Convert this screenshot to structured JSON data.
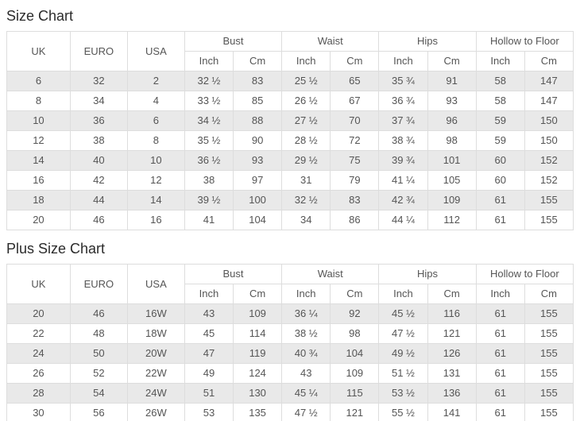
{
  "colors": {
    "stripe_row_bg": "#e9e9e9",
    "table_border": "#dddddd",
    "cell_text": "#555555",
    "title_text": "#2b2b2b",
    "page_bg": "#ffffff"
  },
  "headers": {
    "uk": "UK",
    "euro": "EURO",
    "usa": "USA",
    "bust": "Bust",
    "waist": "Waist",
    "hips": "Hips",
    "hollow_to_floor": "Hollow to Floor",
    "inch": "Inch",
    "cm": "Cm"
  },
  "size_chart": {
    "title": "Size Chart",
    "columns": [
      "UK",
      "EURO",
      "USA",
      "Bust Inch",
      "Bust Cm",
      "Waist Inch",
      "Waist Cm",
      "Hips Inch",
      "Hips Cm",
      "Hollow to Floor Inch",
      "Hollow to Floor Cm"
    ],
    "rows": [
      [
        "6",
        "32",
        "2",
        "32 ½",
        "83",
        "25 ½",
        "65",
        "35 ¾",
        "91",
        "58",
        "147"
      ],
      [
        "8",
        "34",
        "4",
        "33 ½",
        "85",
        "26 ½",
        "67",
        "36 ¾",
        "93",
        "58",
        "147"
      ],
      [
        "10",
        "36",
        "6",
        "34 ½",
        "88",
        "27 ½",
        "70",
        "37 ¾",
        "96",
        "59",
        "150"
      ],
      [
        "12",
        "38",
        "8",
        "35 ½",
        "90",
        "28 ½",
        "72",
        "38 ¾",
        "98",
        "59",
        "150"
      ],
      [
        "14",
        "40",
        "10",
        "36 ½",
        "93",
        "29 ½",
        "75",
        "39 ¾",
        "101",
        "60",
        "152"
      ],
      [
        "16",
        "42",
        "12",
        "38",
        "97",
        "31",
        "79",
        "41 ¼",
        "105",
        "60",
        "152"
      ],
      [
        "18",
        "44",
        "14",
        "39 ½",
        "100",
        "32 ½",
        "83",
        "42 ¾",
        "109",
        "61",
        "155"
      ],
      [
        "20",
        "46",
        "16",
        "41",
        "104",
        "34",
        "86",
        "44 ¼",
        "112",
        "61",
        "155"
      ]
    ]
  },
  "plus_size_chart": {
    "title": "Plus Size Chart",
    "columns": [
      "UK",
      "EURO",
      "USA",
      "Bust Inch",
      "Bust Cm",
      "Waist Inch",
      "Waist Cm",
      "Hips Inch",
      "Hips Cm",
      "Hollow to Floor Inch",
      "Hollow to Floor Cm"
    ],
    "rows": [
      [
        "20",
        "46",
        "16W",
        "43",
        "109",
        "36 ¼",
        "92",
        "45 ½",
        "116",
        "61",
        "155"
      ],
      [
        "22",
        "48",
        "18W",
        "45",
        "114",
        "38 ½",
        "98",
        "47 ½",
        "121",
        "61",
        "155"
      ],
      [
        "24",
        "50",
        "20W",
        "47",
        "119",
        "40 ¾",
        "104",
        "49 ½",
        "126",
        "61",
        "155"
      ],
      [
        "26",
        "52",
        "22W",
        "49",
        "124",
        "43",
        "109",
        "51 ½",
        "131",
        "61",
        "155"
      ],
      [
        "28",
        "54",
        "24W",
        "51",
        "130",
        "45 ¼",
        "115",
        "53 ½",
        "136",
        "61",
        "155"
      ],
      [
        "30",
        "56",
        "26W",
        "53",
        "135",
        "47 ½",
        "121",
        "55 ½",
        "141",
        "61",
        "155"
      ]
    ]
  }
}
